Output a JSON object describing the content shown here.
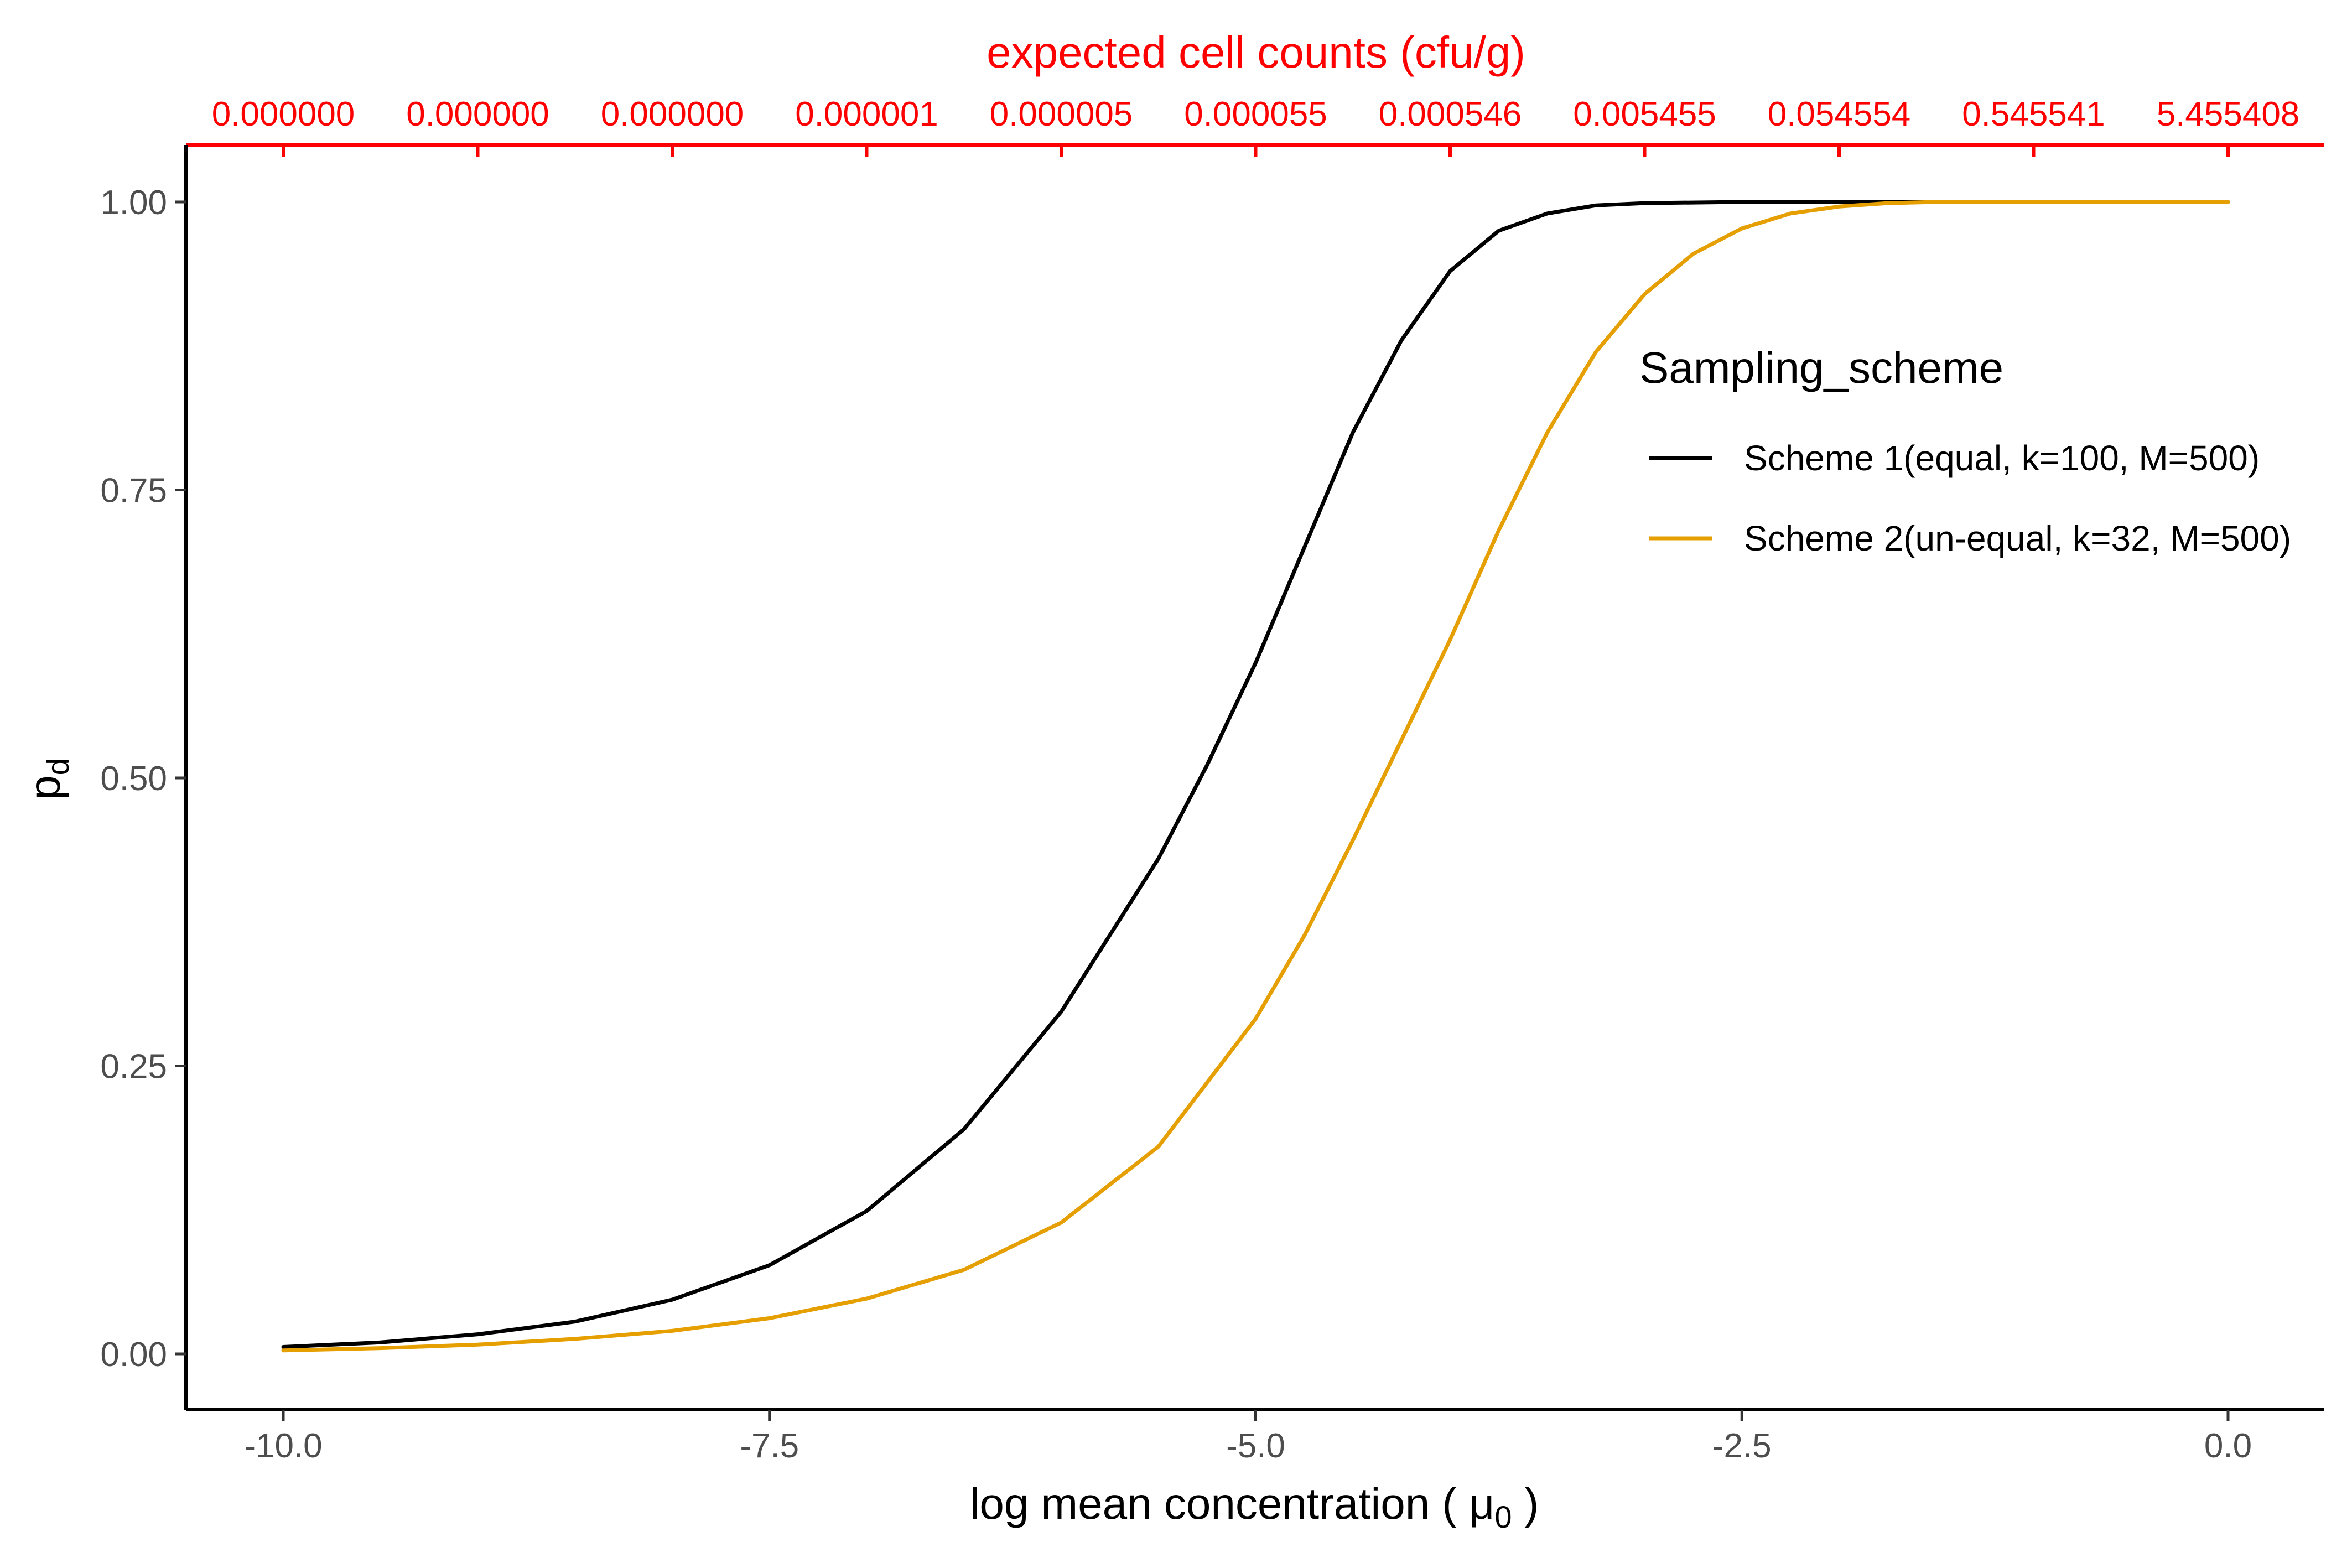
{
  "chart_data": {
    "type": "line",
    "xlabel": "log mean concentration  ( μ",
    "xlabel_sub": "0",
    "xlabel_end": " )",
    "ylabel": "p",
    "ylabel_sub": "d",
    "top_axis_label": "expected cell counts (cfu/g)",
    "xlim": [
      -10.5,
      0.5
    ],
    "ylim": [
      -0.05,
      1.05
    ],
    "x_ticks": [
      {
        "value": -10,
        "label": "-10.0"
      },
      {
        "value": -7.5,
        "label": "-7.5"
      },
      {
        "value": -5,
        "label": "-5.0"
      },
      {
        "value": -2.5,
        "label": "-2.5"
      },
      {
        "value": 0,
        "label": "0.0"
      }
    ],
    "y_ticks": [
      {
        "value": 0,
        "label": "0.00"
      },
      {
        "value": 0.25,
        "label": "0.25"
      },
      {
        "value": 0.5,
        "label": "0.50"
      },
      {
        "value": 0.75,
        "label": "0.75"
      },
      {
        "value": 1,
        "label": "1.00"
      }
    ],
    "top_ticks": [
      {
        "value": -10,
        "label": "0.000000"
      },
      {
        "value": -9,
        "label": "0.000000"
      },
      {
        "value": -8,
        "label": "0.000000"
      },
      {
        "value": -7,
        "label": "0.000001"
      },
      {
        "value": -6,
        "label": "0.000005"
      },
      {
        "value": -5,
        "label": "0.000055"
      },
      {
        "value": -4,
        "label": "0.000546"
      },
      {
        "value": -3,
        "label": "0.005455"
      },
      {
        "value": -2,
        "label": "0.054554"
      },
      {
        "value": -1,
        "label": "0.545541"
      },
      {
        "value": 0,
        "label": "5.455408"
      }
    ],
    "grid": false,
    "legend": {
      "title": "Sampling_scheme",
      "position": "right"
    },
    "series": [
      {
        "name": "Scheme 1(equal, k=100, M=500)",
        "color": "#000000",
        "x": [
          -10,
          -9.5,
          -9,
          -8.5,
          -8,
          -7.5,
          -7,
          -6.5,
          -6,
          -5.5,
          -5.25,
          -5,
          -4.75,
          -4.5,
          -4.25,
          -4,
          -3.75,
          -3.5,
          -3.25,
          -3,
          -2.5,
          -2,
          -1.5,
          -1,
          -0.5,
          0
        ],
        "y": [
          0.006,
          0.01,
          0.017,
          0.028,
          0.047,
          0.077,
          0.124,
          0.195,
          0.297,
          0.43,
          0.511,
          0.6,
          0.7,
          0.8,
          0.88,
          0.94,
          0.975,
          0.99,
          0.997,
          0.999,
          1.0,
          1.0,
          1.0,
          1.0,
          1.0,
          1.0
        ]
      },
      {
        "name": "Scheme 2(un-equal, k=32, M=500)",
        "color": "#E69F00",
        "x": [
          -10,
          -9.5,
          -9,
          -8.5,
          -8,
          -7.5,
          -7,
          -6.5,
          -6,
          -5.5,
          -5,
          -4.75,
          -4.5,
          -4.25,
          -4,
          -3.75,
          -3.5,
          -3.25,
          -3,
          -2.75,
          -2.5,
          -2.25,
          -2,
          -1.75,
          -1.5,
          -1,
          -0.5,
          0
        ],
        "y": [
          0.003,
          0.005,
          0.008,
          0.013,
          0.02,
          0.031,
          0.048,
          0.073,
          0.114,
          0.18,
          0.291,
          0.363,
          0.446,
          0.533,
          0.62,
          0.715,
          0.8,
          0.87,
          0.92,
          0.955,
          0.977,
          0.99,
          0.996,
          0.999,
          1.0,
          1.0,
          1.0,
          1.0
        ]
      }
    ]
  }
}
